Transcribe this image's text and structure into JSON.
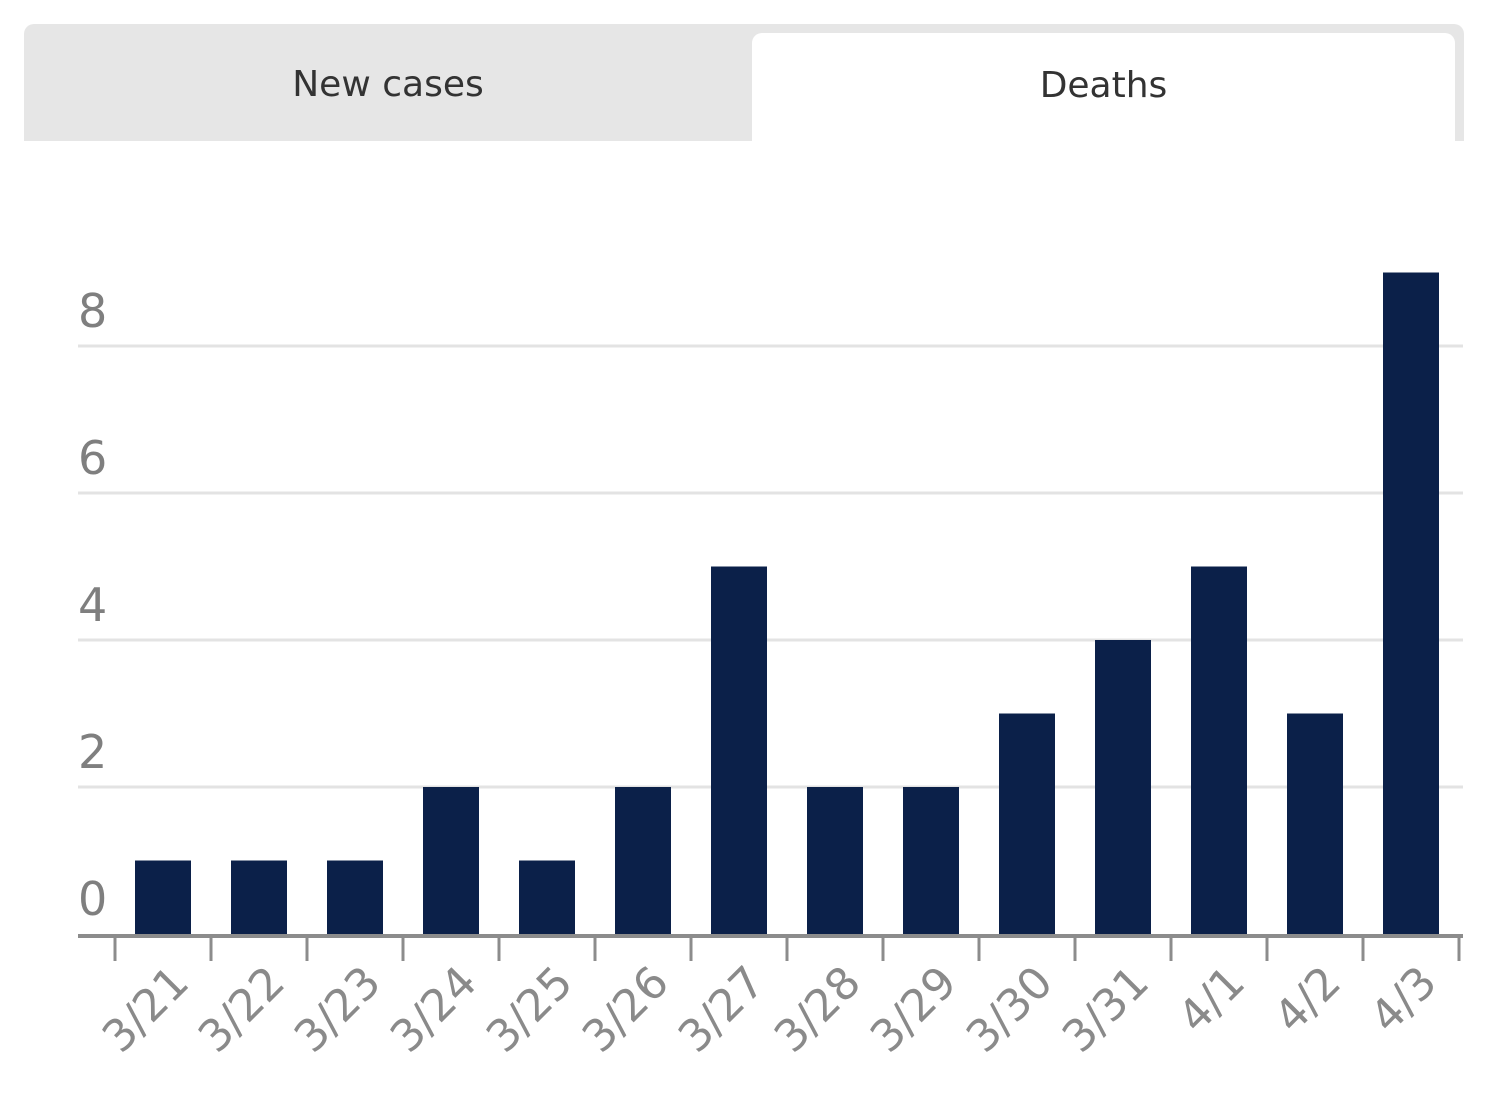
{
  "tabs": [
    {
      "label": "New cases",
      "active": false
    },
    {
      "label": "Deaths",
      "active": true
    }
  ],
  "colors": {
    "bar": "#0b2049",
    "grid": "#e3e3e3",
    "axis": "#8c8c8c",
    "tab_inactive": "#e6e6e6",
    "tab_active": "#ffffff"
  },
  "chart_data": {
    "type": "bar",
    "title": "",
    "xlabel": "",
    "ylabel": "",
    "categories": [
      "3/21",
      "3/22",
      "3/23",
      "3/24",
      "3/25",
      "3/26",
      "3/27",
      "3/28",
      "3/29",
      "3/30",
      "3/31",
      "4/1",
      "4/2",
      "4/3"
    ],
    "values": [
      1,
      1,
      1,
      2,
      1,
      2,
      5,
      2,
      2,
      3,
      4,
      5,
      3,
      9
    ],
    "ylim": [
      0,
      9
    ],
    "yticks": [
      0,
      2,
      4,
      6,
      8
    ],
    "grid": true,
    "legend": "none"
  }
}
